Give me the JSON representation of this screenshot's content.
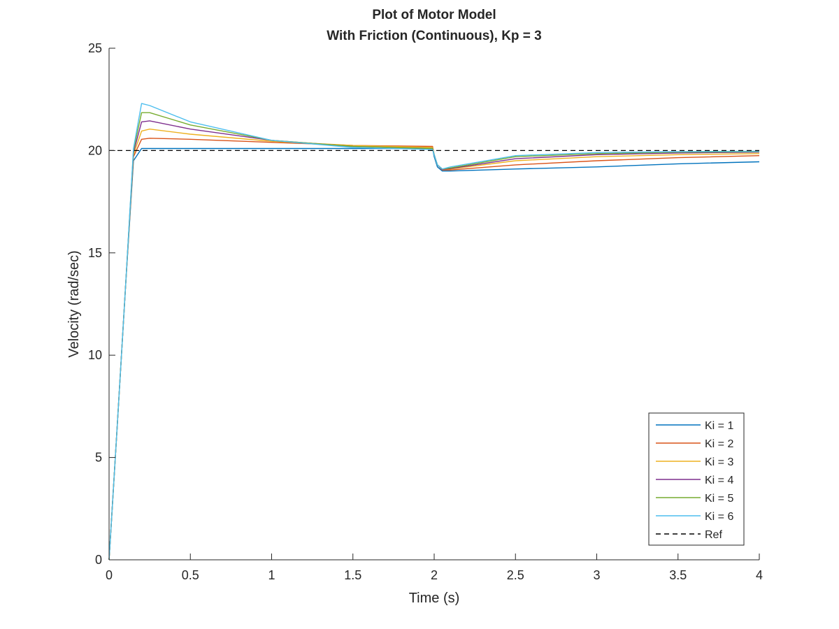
{
  "chart_data": {
    "type": "line",
    "title": [
      "Plot of Motor Model",
      "With Friction (Continuous), Kp = 3"
    ],
    "xlabel": "Time (s)",
    "ylabel": "Velocity (rad/sec)",
    "xlim": [
      0,
      4
    ],
    "ylim": [
      0,
      25
    ],
    "xticks": [
      0,
      0.5,
      1,
      1.5,
      2,
      2.5,
      3,
      3.5,
      4
    ],
    "xtick_labels": [
      "0",
      "0.5",
      "1",
      "1.5",
      "2",
      "2.5",
      "3",
      "3.5",
      "4"
    ],
    "yticks": [
      0,
      5,
      10,
      15,
      20,
      25
    ],
    "ytick_labels": [
      "0",
      "5",
      "10",
      "15",
      "20",
      "25"
    ],
    "grid": false,
    "legend_position": "bottom-right",
    "colors": [
      "#0072bd",
      "#d95319",
      "#edb120",
      "#7e2f8e",
      "#77ac30",
      "#4dbeee",
      "#000000"
    ],
    "series": [
      {
        "name": "Ki = 1",
        "x": [
          0,
          0.05,
          0.1,
          0.15,
          0.2,
          0.3,
          0.5,
          1.0,
          1.5,
          1.99,
          2.0,
          2.02,
          2.05,
          2.1,
          2.5,
          3.0,
          3.5,
          4.0
        ],
        "y": [
          0,
          6.5,
          13.2,
          19.5,
          20.1,
          20.1,
          20.1,
          20.1,
          20.1,
          20.1,
          19.7,
          19.2,
          19.0,
          19.0,
          19.1,
          19.2,
          19.35,
          19.45
        ]
      },
      {
        "name": "Ki = 2",
        "x": [
          0,
          0.05,
          0.1,
          0.15,
          0.2,
          0.25,
          0.5,
          1.0,
          1.5,
          1.99,
          2.0,
          2.02,
          2.05,
          2.1,
          2.5,
          3.0,
          3.5,
          4.0
        ],
        "y": [
          0,
          6.5,
          13.2,
          19.7,
          20.55,
          20.6,
          20.55,
          20.4,
          20.25,
          20.2,
          19.8,
          19.3,
          19.05,
          19.05,
          19.3,
          19.5,
          19.65,
          19.75
        ]
      },
      {
        "name": "Ki = 3",
        "x": [
          0,
          0.05,
          0.1,
          0.15,
          0.2,
          0.25,
          0.5,
          1.0,
          1.5,
          1.99,
          2.0,
          2.02,
          2.05,
          2.1,
          2.5,
          3.0,
          3.5,
          4.0
        ],
        "y": [
          0,
          6.5,
          13.2,
          19.8,
          20.95,
          21.05,
          20.8,
          20.45,
          20.25,
          20.15,
          19.8,
          19.3,
          19.08,
          19.1,
          19.5,
          19.7,
          19.8,
          19.85
        ]
      },
      {
        "name": "Ki = 4",
        "x": [
          0,
          0.05,
          0.1,
          0.15,
          0.2,
          0.25,
          0.5,
          1.0,
          1.5,
          1.99,
          2.0,
          2.02,
          2.05,
          2.1,
          2.5,
          3.0,
          3.5,
          4.0
        ],
        "y": [
          0,
          6.5,
          13.2,
          19.9,
          21.4,
          21.45,
          21.05,
          20.5,
          20.2,
          20.1,
          19.8,
          19.3,
          19.08,
          19.12,
          19.6,
          19.8,
          19.88,
          19.92
        ]
      },
      {
        "name": "Ki = 5",
        "x": [
          0,
          0.05,
          0.1,
          0.15,
          0.2,
          0.25,
          0.5,
          1.0,
          1.5,
          1.99,
          2.0,
          2.02,
          2.05,
          2.1,
          2.5,
          3.0,
          3.5,
          4.0
        ],
        "y": [
          0,
          6.5,
          13.2,
          20.0,
          21.85,
          21.85,
          21.25,
          20.5,
          20.2,
          20.1,
          19.8,
          19.3,
          19.1,
          19.15,
          19.7,
          19.85,
          19.92,
          19.95
        ]
      },
      {
        "name": "Ki = 6",
        "x": [
          0,
          0.05,
          0.1,
          0.15,
          0.2,
          0.25,
          0.5,
          1.0,
          1.5,
          1.99,
          2.0,
          2.02,
          2.05,
          2.1,
          2.5,
          3.0,
          3.5,
          4.0
        ],
        "y": [
          0,
          6.5,
          13.2,
          20.1,
          22.3,
          22.2,
          21.4,
          20.5,
          20.15,
          20.05,
          19.8,
          19.3,
          19.1,
          19.2,
          19.75,
          19.9,
          19.95,
          19.97
        ]
      },
      {
        "name": "Ref",
        "x": [
          0,
          4
        ],
        "y": [
          20,
          20
        ],
        "dashed": true
      }
    ]
  }
}
